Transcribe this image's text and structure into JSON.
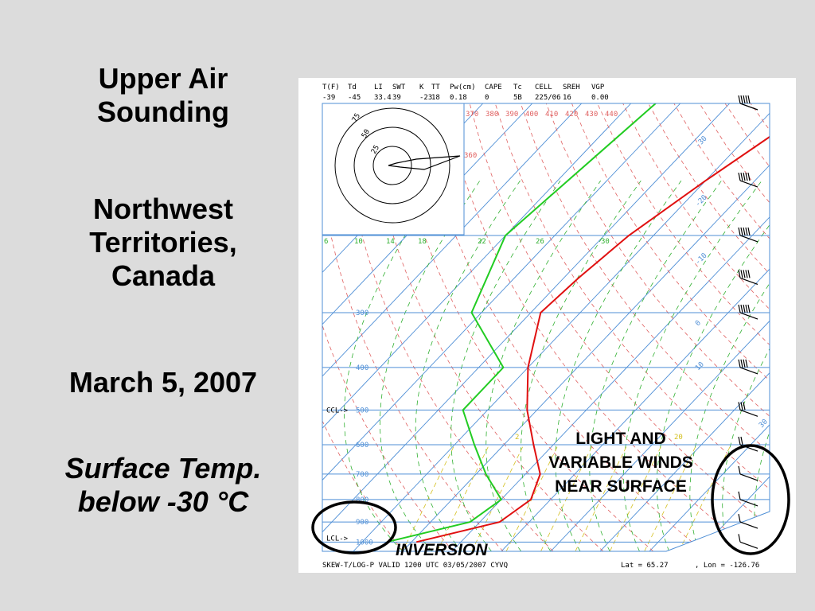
{
  "slide": {
    "title": [
      "Upper Air",
      "Sounding"
    ],
    "location": [
      "Northwest",
      "Territories,",
      "Canada"
    ],
    "date": "March 5, 2007",
    "note": [
      "Surface Temp.",
      "below -30 °C"
    ]
  },
  "annotations": {
    "winds": [
      "LIGHT AND",
      "VARIABLE WINDS",
      "NEAR SURFACE"
    ],
    "inversion": "INVERSION"
  },
  "indices": {
    "headers": [
      "T(F)",
      "Td",
      "LI",
      "SWT",
      "K",
      "TT",
      "Pw(cm)",
      "CAPE",
      "Tc",
      "CELL",
      "SREH",
      "VGP"
    ],
    "values": [
      "-39",
      "-45",
      "33.4",
      "39",
      "-23",
      "18",
      "0.18",
      "0",
      "5B",
      "225/06",
      "16",
      "0.00"
    ]
  },
  "footer": {
    "left": "SKEW-T/LOG-P VALID 1200 UTC 03/05/2007   CYVQ",
    "lat_label": "Lat =",
    "lat": "65.27",
    "lon_label": ", Lon =",
    "lon": "-126.76"
  },
  "levels": {
    "ccl": "CCL->",
    "lcl": "LCL->"
  },
  "hodograph": {
    "rings": [
      "25",
      "50",
      "75"
    ]
  },
  "colors": {
    "background": "#dcdcdc",
    "temperature": "#e01010",
    "dewpoint": "#22cc22",
    "isotherm": "#4f8fd6",
    "dry_adiabat": "#e06060",
    "moist_adiabat": "#30b030",
    "mixing_ratio": "#d4c020",
    "isobar": "#4f8fd6",
    "circle": "#000000"
  },
  "chart_data": {
    "type": "line",
    "title": "",
    "xlabel": "",
    "ylabel": "",
    "pressure_ticks": [
      300,
      400,
      500,
      600,
      700,
      800,
      900,
      1000
    ],
    "temperature_ticks_skewed": [
      -30,
      -20,
      -10,
      0,
      10,
      20,
      30
    ],
    "potential_temp_labels": [
      370,
      380,
      390,
      400,
      410,
      420,
      430,
      440
    ],
    "potential_temp_label_360": 360,
    "mixing_ratio_labels": [
      6,
      10,
      14,
      18,
      22,
      26,
      30
    ],
    "mixing_ratio_lower_labels": [
      2,
      20
    ],
    "series": [
      {
        "name": "T",
        "points": [
          {
            "p": 100,
            "t": -42
          },
          {
            "p": 150,
            "t": -50
          },
          {
            "p": 200,
            "t": -55
          },
          {
            "p": 250,
            "t": -57
          },
          {
            "p": 300,
            "t": -58
          },
          {
            "p": 400,
            "t": -50
          },
          {
            "p": 500,
            "t": -42
          },
          {
            "p": 600,
            "t": -34
          },
          {
            "p": 700,
            "t": -27
          },
          {
            "p": 800,
            "t": -24
          },
          {
            "p": 900,
            "t": -26
          },
          {
            "p": 1000,
            "t": -39
          }
        ]
      },
      {
        "name": "Td",
        "points": [
          {
            "p": 100,
            "t": -75
          },
          {
            "p": 200,
            "t": -80
          },
          {
            "p": 300,
            "t": -72
          },
          {
            "p": 400,
            "t": -55
          },
          {
            "p": 500,
            "t": -55
          },
          {
            "p": 600,
            "t": -46
          },
          {
            "p": 700,
            "t": -38
          },
          {
            "p": 800,
            "t": -30
          },
          {
            "p": 900,
            "t": -32
          },
          {
            "p": 1000,
            "t": -45
          }
        ]
      }
    ],
    "wind_barbs": [
      {
        "p": 100,
        "speed_kt": 55
      },
      {
        "p": 150,
        "speed_kt": 50
      },
      {
        "p": 200,
        "speed_kt": 50
      },
      {
        "p": 250,
        "speed_kt": 45
      },
      {
        "p": 300,
        "speed_kt": 45
      },
      {
        "p": 400,
        "speed_kt": 40
      },
      {
        "p": 500,
        "speed_kt": 30
      },
      {
        "p": 600,
        "speed_kt": 15
      },
      {
        "p": 700,
        "speed_kt": 10
      },
      {
        "p": 800,
        "speed_kt": 5
      },
      {
        "p": 900,
        "speed_kt": 5
      },
      {
        "p": 1000,
        "speed_kt": 5
      }
    ],
    "grid": true,
    "legend": "none"
  }
}
